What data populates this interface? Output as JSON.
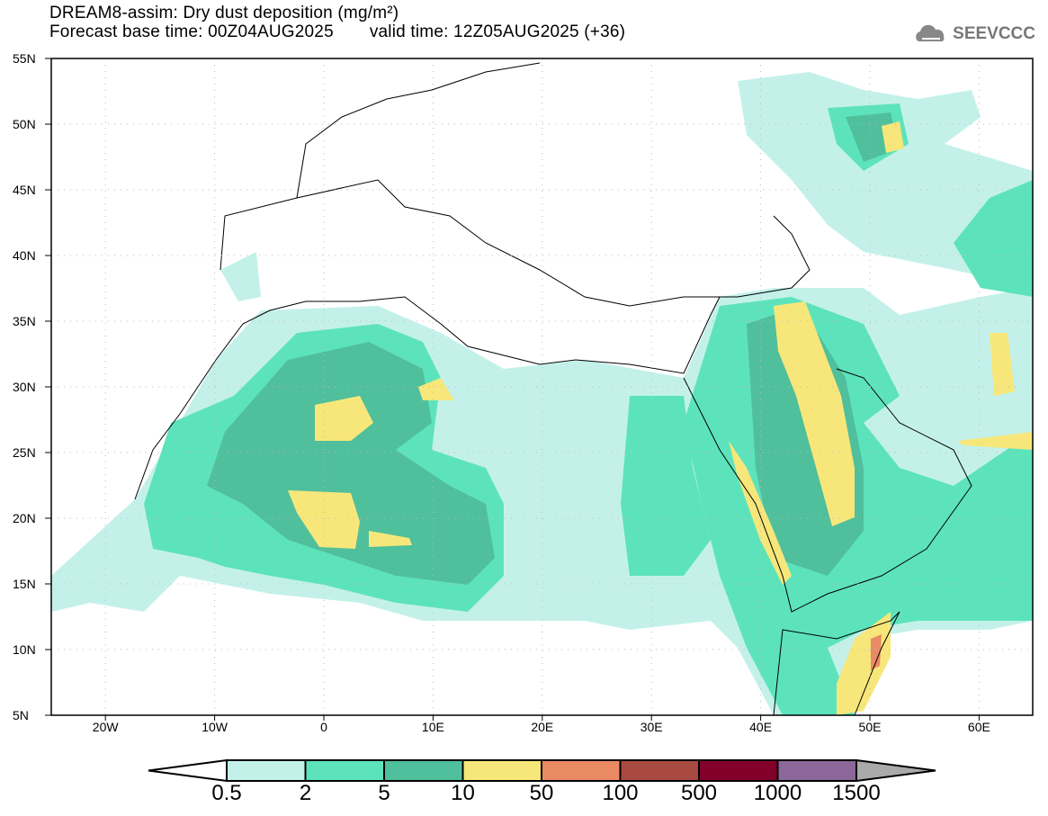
{
  "header": {
    "title": "DREAM8-assim: Dry dust deposition (mg/m²)",
    "base_time": "Forecast base time: 00Z04AUG2025",
    "valid_time": "valid time: 12Z05AUG2025 (+36)",
    "logo": "SEEVCCC"
  },
  "map": {
    "lat_labels": [
      "55N",
      "50N",
      "45N",
      "40N",
      "35N",
      "30N",
      "25N",
      "20N",
      "15N",
      "10N",
      "5N"
    ],
    "lon_labels": [
      "20W",
      "10W",
      "0",
      "10E",
      "20E",
      "30E",
      "40E",
      "50E",
      "60E"
    ],
    "lon_range": [
      -25,
      65
    ],
    "lat_range": [
      5,
      55
    ]
  },
  "colorbar": {
    "labels": [
      "0.5",
      "2",
      "5",
      "10",
      "50",
      "100",
      "500",
      "1000",
      "1500"
    ],
    "colors": [
      "#ffffff",
      "#c3f1ea",
      "#5de3bc",
      "#50bf9c",
      "#f7e77a",
      "#ea8a64",
      "#a84a3f",
      "#83002b",
      "#8c6799",
      "#aaaaaa"
    ]
  }
}
